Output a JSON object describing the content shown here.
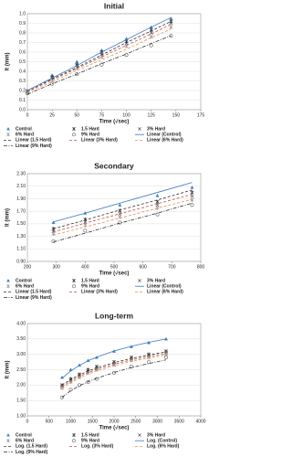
{
  "chart_data": [
    {
      "type": "scatter",
      "title": "Initial",
      "xlabel": "Time (√sec)",
      "ylabel": "It (mm)",
      "xlim": [
        0,
        175
      ],
      "xticks": [
        0,
        25,
        50,
        75,
        100,
        125,
        150,
        175
      ],
      "ylim": [
        0,
        1
      ],
      "yticks": [
        {
          "value": 0,
          "label": "0.0"
        },
        0.1,
        0.2,
        0.3,
        0.4,
        0.5,
        0.6,
        0.7,
        0.8,
        0.9,
        {
          "value": 1,
          "label": "1.0"
        }
      ],
      "x": [
        0,
        25,
        50,
        75,
        100,
        125,
        145
      ],
      "series": [
        {
          "name": "Control",
          "type": "scatter",
          "marker": "triangle",
          "color": "#3a78c2",
          "values": [
            0.2,
            0.36,
            0.5,
            0.62,
            0.74,
            0.86,
            0.95
          ]
        },
        {
          "name": "1.5 Hard",
          "type": "scatter",
          "marker": "star",
          "color": "#333333",
          "values": [
            0.19,
            0.34,
            0.47,
            0.6,
            0.71,
            0.83,
            0.92
          ]
        },
        {
          "name": "3% Hard",
          "type": "scatter",
          "marker": "cross",
          "color": "#555555",
          "values": [
            0.19,
            0.33,
            0.46,
            0.58,
            0.69,
            0.8,
            0.9
          ]
        },
        {
          "name": "6% Hard",
          "type": "scatter",
          "marker": "star",
          "color": "#999999",
          "values": [
            0.18,
            0.31,
            0.43,
            0.55,
            0.66,
            0.76,
            0.86
          ]
        },
        {
          "name": "9% Hard",
          "type": "scatter",
          "marker": "circle",
          "color": "#666666",
          "values": [
            0.17,
            0.27,
            0.37,
            0.47,
            0.57,
            0.67,
            0.77
          ]
        },
        {
          "name": "Linear (Control)",
          "type": "line",
          "dash": "none",
          "color": "#3a78c2",
          "values": [
            0.2,
            0.33,
            0.46,
            0.6,
            0.73,
            0.86,
            0.96
          ]
        },
        {
          "name": "Linear (1.5 Hard)",
          "type": "line",
          "dash": "3,2",
          "color": "#333333",
          "values": [
            0.19,
            0.32,
            0.44,
            0.57,
            0.7,
            0.82,
            0.92
          ]
        },
        {
          "name": "Linear (3% Hard)",
          "type": "line",
          "dash": "3,2",
          "color": "#c0504d",
          "values": [
            0.19,
            0.31,
            0.43,
            0.55,
            0.67,
            0.79,
            0.89
          ]
        },
        {
          "name": "Linear (6% Hard)",
          "type": "line",
          "dash": "3,2",
          "color": "#d8955a",
          "values": [
            0.18,
            0.29,
            0.41,
            0.52,
            0.63,
            0.75,
            0.84
          ]
        },
        {
          "name": "Linear (9% Hard)",
          "type": "line",
          "dash": "4,1.5,1,1.5",
          "color": "#333333",
          "values": [
            0.16,
            0.27,
            0.37,
            0.48,
            0.58,
            0.69,
            0.77
          ]
        }
      ]
    },
    {
      "type": "scatter",
      "title": "Secondary",
      "xlabel": "Time (√sec)",
      "ylabel": "It (mm)",
      "xlim": [
        200,
        800
      ],
      "xticks": [
        200,
        300,
        400,
        500,
        600,
        700,
        800
      ],
      "ylim": [
        0.9,
        2.3
      ],
      "yticks": [
        {
          "value": 0.9,
          "label": "0.90"
        },
        {
          "value": 1.1,
          "label": "1.10"
        },
        {
          "value": 1.3,
          "label": "1.30"
        },
        {
          "value": 1.5,
          "label": "1.50"
        },
        {
          "value": 1.7,
          "label": "1.70"
        },
        {
          "value": 1.9,
          "label": "1.90"
        },
        {
          "value": 2.1,
          "label": "2.10"
        },
        {
          "value": 2.3,
          "label": "2.30"
        }
      ],
      "x": [
        290,
        400,
        520,
        650,
        770
      ],
      "series": [
        {
          "name": "Control",
          "type": "scatter",
          "marker": "triangle",
          "color": "#3a78c2",
          "values": [
            1.52,
            1.67,
            1.8,
            1.95,
            2.08
          ]
        },
        {
          "name": "1.5 Hard",
          "type": "scatter",
          "marker": "star",
          "color": "#333333",
          "values": [
            1.42,
            1.57,
            1.71,
            1.85,
            2.0
          ]
        },
        {
          "name": "3% Hard",
          "type": "scatter",
          "marker": "cross",
          "color": "#555555",
          "values": [
            1.38,
            1.53,
            1.66,
            1.8,
            1.94
          ]
        },
        {
          "name": "6% Hard",
          "type": "scatter",
          "marker": "star",
          "color": "#999999",
          "values": [
            1.34,
            1.48,
            1.61,
            1.75,
            1.88
          ]
        },
        {
          "name": "9% Hard",
          "type": "scatter",
          "marker": "circle",
          "color": "#666666",
          "values": [
            1.22,
            1.39,
            1.52,
            1.65,
            1.8
          ]
        },
        {
          "name": "Linear (Control)",
          "type": "line",
          "dash": "none",
          "color": "#3a78c2",
          "values": [
            1.53,
            1.67,
            1.83,
            2.0,
            2.16
          ]
        },
        {
          "name": "Linear (1.5 Hard)",
          "type": "line",
          "dash": "3,2",
          "color": "#333333",
          "values": [
            1.42,
            1.56,
            1.72,
            1.88,
            2.04
          ]
        },
        {
          "name": "Linear (3% Hard)",
          "type": "line",
          "dash": "3,2",
          "color": "#c0504d",
          "values": [
            1.37,
            1.51,
            1.66,
            1.82,
            1.97
          ]
        },
        {
          "name": "Linear (6% Hard)",
          "type": "line",
          "dash": "3,2",
          "color": "#d8955a",
          "values": [
            1.32,
            1.45,
            1.59,
            1.75,
            1.89
          ]
        },
        {
          "name": "Linear (9% Hard)",
          "type": "line",
          "dash": "4,1.5,1,1.5",
          "color": "#333333",
          "values": [
            1.21,
            1.35,
            1.51,
            1.67,
            1.83
          ]
        }
      ]
    },
    {
      "type": "scatter",
      "title": "Long-term",
      "xlabel": "Time (√sec)",
      "ylabel": "It (mm)",
      "xlim": [
        0,
        4000
      ],
      "xticks": [
        0,
        500,
        1000,
        1500,
        2000,
        2500,
        3000,
        3500,
        4000
      ],
      "ylim": [
        1,
        4
      ],
      "yticks": [
        {
          "value": 1,
          "label": "1.00"
        },
        {
          "value": 1.5,
          "label": "1.50"
        },
        {
          "value": 2,
          "label": "2.00"
        },
        {
          "value": 2.5,
          "label": "2.50"
        },
        {
          "value": 3,
          "label": "3.00"
        },
        {
          "value": 3.5,
          "label": "3.50"
        },
        {
          "value": 4,
          "label": "4.00"
        }
      ],
      "x": [
        800,
        1000,
        1200,
        1400,
        1600,
        2000,
        2400,
        2800,
        3200
      ],
      "series": [
        {
          "name": "Control",
          "type": "scatter",
          "marker": "triangle",
          "color": "#3a78c2",
          "values": [
            2.25,
            2.5,
            2.65,
            2.8,
            2.9,
            3.1,
            3.25,
            3.38,
            3.5
          ]
        },
        {
          "name": "1.5 Hard",
          "type": "scatter",
          "marker": "star",
          "color": "#333333",
          "values": [
            2.0,
            2.2,
            2.35,
            2.5,
            2.6,
            2.75,
            2.9,
            3.0,
            3.1
          ]
        },
        {
          "name": "3% Hard",
          "type": "scatter",
          "marker": "cross",
          "color": "#555555",
          "values": [
            1.95,
            2.15,
            2.3,
            2.45,
            2.55,
            2.7,
            2.85,
            2.95,
            3.05
          ]
        },
        {
          "name": "6% Hard",
          "type": "scatter",
          "marker": "star",
          "color": "#999999",
          "values": [
            1.9,
            2.1,
            2.25,
            2.4,
            2.5,
            2.65,
            2.8,
            2.9,
            3.0
          ]
        },
        {
          "name": "9% Hard",
          "type": "scatter",
          "marker": "circle",
          "color": "#666666",
          "values": [
            1.6,
            1.85,
            2.0,
            2.1,
            2.2,
            2.4,
            2.6,
            2.75,
            2.9
          ]
        },
        {
          "name": "Log. (Control)",
          "type": "line",
          "dash": "none",
          "color": "#3a78c2",
          "values": [
            2.22,
            2.46,
            2.64,
            2.79,
            2.91,
            3.11,
            3.26,
            3.39,
            3.5
          ]
        },
        {
          "name": "Log. (1.5 Hard)",
          "type": "line",
          "dash": "3,2",
          "color": "#333333",
          "values": [
            2.0,
            2.18,
            2.33,
            2.46,
            2.56,
            2.73,
            2.87,
            2.98,
            3.08
          ]
        },
        {
          "name": "Log. (3% Hard)",
          "type": "line",
          "dash": "3,2",
          "color": "#c0504d",
          "values": [
            1.95,
            2.13,
            2.28,
            2.41,
            2.51,
            2.68,
            2.82,
            2.93,
            3.03
          ]
        },
        {
          "name": "Log. (6% Hard)",
          "type": "line",
          "dash": "3,2",
          "color": "#d8955a",
          "values": [
            1.9,
            2.08,
            2.23,
            2.36,
            2.46,
            2.63,
            2.77,
            2.88,
            2.98
          ]
        },
        {
          "name": "Log. (9% Hard)",
          "type": "line",
          "dash": "4,1.5,1,1.5",
          "color": "#333333",
          "values": [
            1.6,
            1.82,
            1.98,
            2.11,
            2.22,
            2.41,
            2.57,
            2.7,
            2.82
          ]
        }
      ]
    }
  ]
}
